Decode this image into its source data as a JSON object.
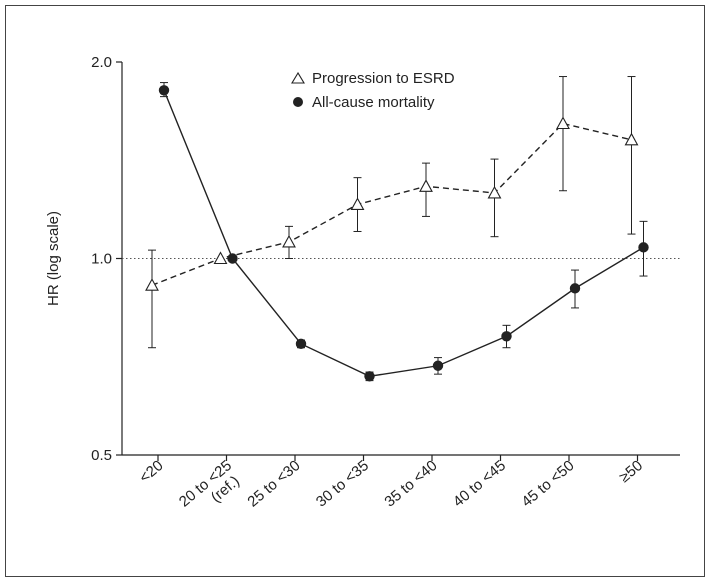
{
  "chart_data": {
    "type": "line",
    "title": "",
    "xlabel": "",
    "ylabel": "HR (log scale)",
    "yscale": "log",
    "ylim": [
      0.5,
      2.0
    ],
    "yticks": [
      {
        "value": 2.0,
        "label": "2.0"
      },
      {
        "value": 1.0,
        "label": "1.0"
      },
      {
        "value": 0.5,
        "label": "0.5"
      }
    ],
    "reference_line": {
      "value": 1.0,
      "style": "dotted"
    },
    "grid": false,
    "legend_position": "top-center",
    "categories": [
      {
        "label": "<20"
      },
      {
        "label": "20 to <25",
        "label2": "(ref.)"
      },
      {
        "label": "25 to <30"
      },
      {
        "label": "30 to <35"
      },
      {
        "label": "35 to <40"
      },
      {
        "label": "40 to <45"
      },
      {
        "label": "45 to <50"
      },
      {
        "label": "≥50"
      }
    ],
    "series": [
      {
        "name": "Progression to ESRD",
        "marker": "open-triangle",
        "line_style": "dashed",
        "color": "#222222",
        "values": [
          0.91,
          1.0,
          1.06,
          1.21,
          1.29,
          1.26,
          1.61,
          1.52
        ],
        "ci_low": [
          0.73,
          1.0,
          1.0,
          1.1,
          1.16,
          1.08,
          1.27,
          1.09
        ],
        "ci_high": [
          1.03,
          1.0,
          1.12,
          1.33,
          1.4,
          1.42,
          1.9,
          1.9
        ]
      },
      {
        "name": "All-cause mortality",
        "marker": "filled-circle",
        "line_style": "solid",
        "color": "#222222",
        "values": [
          1.81,
          1.0,
          0.74,
          0.66,
          0.685,
          0.76,
          0.9,
          1.04
        ],
        "ci_low": [
          1.77,
          1.0,
          0.73,
          0.65,
          0.665,
          0.73,
          0.84,
          0.94
        ],
        "ci_high": [
          1.86,
          1.0,
          0.75,
          0.67,
          0.705,
          0.79,
          0.96,
          1.14
        ]
      }
    ]
  }
}
